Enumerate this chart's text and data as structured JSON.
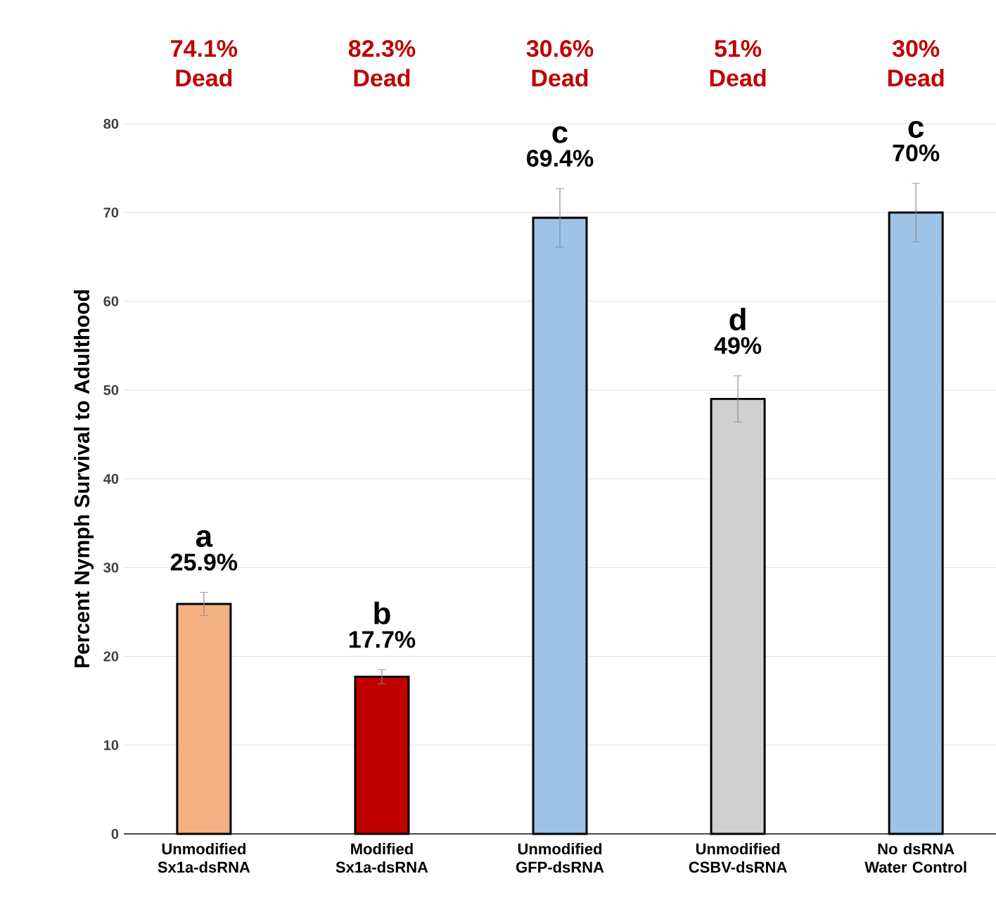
{
  "chart_data": {
    "type": "bar",
    "ylabel": "Percent  Nymph Survival to Adulthood",
    "categories": [
      "Unmodified Sx1a-dsRNA",
      "Modified Sx1a-dsRNA",
      "Unmodified GFP-dsRNA",
      "Unmodified CSBV-dsRNA",
      "No dsRNA Water Control"
    ],
    "values": [
      25.9,
      17.7,
      69.4,
      49,
      70
    ],
    "errors": [
      1.3,
      0.8,
      3.3,
      2.6,
      3.3
    ],
    "colors": [
      "#f4b183",
      "#c00000",
      "#9dc3e6",
      "#d0d0d0",
      "#9dc3e6"
    ],
    "value_labels": [
      "25.9%",
      "17.7%",
      "69.4%",
      "49%",
      "70%"
    ],
    "annotations": [
      "a",
      "b",
      "c",
      "d",
      "c",
      "74.1% Dead",
      "82.3% Dead",
      "30.6% Dead",
      "51% Dead",
      "30% Dead"
    ],
    "ylim": [
      0,
      80
    ],
    "yticks": [
      0,
      10,
      20,
      30,
      40,
      50,
      60,
      70,
      80
    ],
    "grid": "y"
  }
}
